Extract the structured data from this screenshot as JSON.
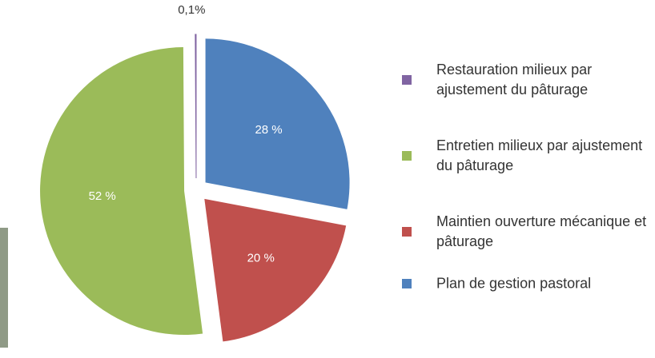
{
  "chart_data": {
    "type": "pie",
    "categories": [
      "Plan de gestion pastoral",
      "Maintien ouverture mécanique et pâturage",
      "Entretien milieux par ajustement du pâturage",
      "Restauration milieux par ajustement du pâturage"
    ],
    "values": [
      28,
      20,
      52,
      0.1
    ],
    "value_labels": [
      "28 %",
      "20 %",
      "52 %",
      "0,1%"
    ],
    "colors": [
      "#4f81bd",
      "#c0504d",
      "#9bbb59",
      "#8064a2"
    ],
    "legend": "right"
  }
}
